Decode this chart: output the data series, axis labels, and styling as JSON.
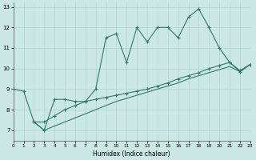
{
  "xlabel": "Humidex (Indice chaleur)",
  "xlim": [
    0,
    23
  ],
  "ylim": [
    6.5,
    13.2
  ],
  "xticks": [
    0,
    1,
    2,
    3,
    4,
    5,
    6,
    7,
    8,
    9,
    10,
    11,
    12,
    13,
    14,
    15,
    16,
    17,
    18,
    19,
    20,
    21,
    22,
    23
  ],
  "yticks": [
    7,
    8,
    9,
    10,
    11,
    12,
    13
  ],
  "bg_color": "#cce8e4",
  "grid_color": "#b0d4cf",
  "line_color": "#2d7a6c",
  "line1_x": [
    0,
    1,
    2,
    3,
    4,
    5,
    6,
    7,
    8,
    9,
    10,
    11,
    12,
    13,
    14,
    15,
    16,
    17,
    18,
    19,
    20,
    21,
    22,
    23
  ],
  "line1_y": [
    9.0,
    8.9,
    7.4,
    7.0,
    8.5,
    8.5,
    8.4,
    8.4,
    9.0,
    11.5,
    11.7,
    10.3,
    12.0,
    11.3,
    12.0,
    12.0,
    11.5,
    12.5,
    12.9,
    12.0,
    11.0,
    10.3,
    9.9,
    10.2
  ],
  "line2_x": [
    2,
    3,
    4,
    5,
    6,
    7,
    8,
    9,
    10,
    11,
    12,
    13,
    14,
    15,
    16,
    17,
    18,
    19,
    20,
    21,
    22,
    23
  ],
  "line2_y": [
    7.4,
    7.4,
    7.7,
    8.0,
    8.2,
    8.4,
    8.5,
    8.6,
    8.7,
    8.8,
    8.9,
    9.0,
    9.15,
    9.3,
    9.5,
    9.65,
    9.8,
    10.0,
    10.15,
    10.3,
    9.85,
    10.2
  ],
  "line3_x": [
    2,
    3,
    4,
    5,
    6,
    7,
    8,
    9,
    10,
    11,
    12,
    13,
    14,
    15,
    16,
    17,
    18,
    19,
    20,
    21,
    22,
    23
  ],
  "line3_y": [
    7.4,
    7.0,
    7.2,
    7.4,
    7.6,
    7.8,
    8.0,
    8.2,
    8.4,
    8.55,
    8.7,
    8.85,
    9.0,
    9.15,
    9.3,
    9.5,
    9.65,
    9.8,
    9.95,
    10.1,
    9.85,
    10.2
  ]
}
